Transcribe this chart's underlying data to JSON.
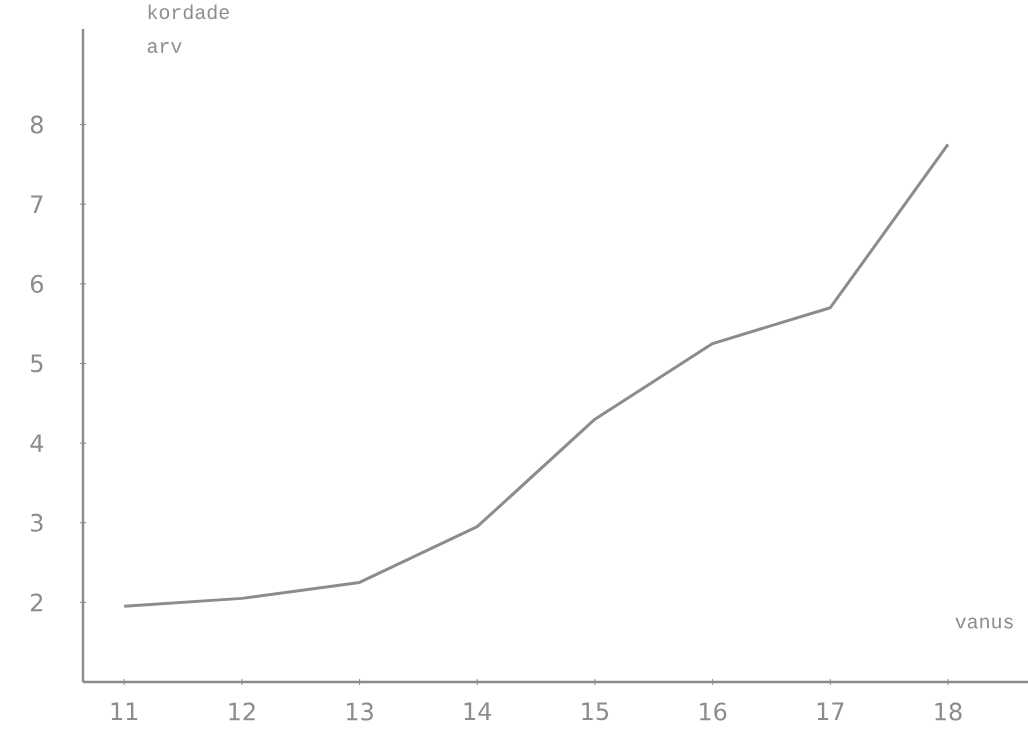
{
  "chart_data": {
    "type": "line",
    "xlabel": "vanus",
    "ylabel": "kordade arv",
    "x": [
      11,
      12,
      13,
      14,
      15,
      16,
      17,
      18
    ],
    "values": [
      1.95,
      2.05,
      2.25,
      2.95,
      4.3,
      5.25,
      5.7,
      7.75
    ],
    "color": "#8c8c8c",
    "xlim": [
      10.65,
      18.68
    ],
    "ylim": [
      1,
      9.2
    ],
    "xticks": [
      11,
      12,
      13,
      14,
      15,
      16,
      17,
      18
    ],
    "yticks": [
      2,
      3,
      4,
      5,
      6,
      7,
      8
    ]
  }
}
